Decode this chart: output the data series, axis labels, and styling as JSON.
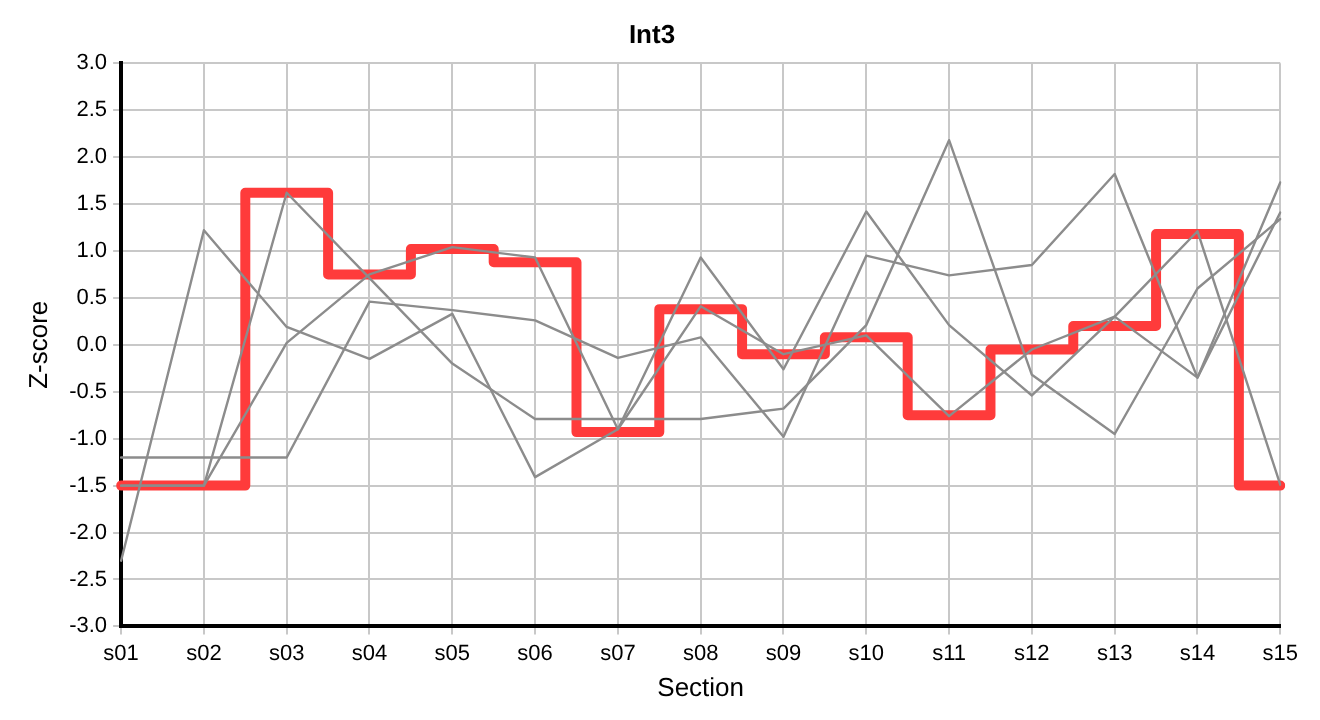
{
  "chart_data": {
    "type": "line",
    "title": "Int3",
    "xlabel": "Section",
    "ylabel": "Z-score",
    "categories": [
      "s01",
      "s02",
      "s03",
      "s04",
      "s05",
      "s06",
      "s07",
      "s08",
      "s09",
      "s10",
      "s11",
      "s12",
      "s13",
      "s14",
      "s15"
    ],
    "series": [
      {
        "color": "#8c8c8c",
        "values": [
          -2.3,
          1.22,
          0.19,
          -0.15,
          0.33,
          -1.41,
          -0.9,
          0.93,
          -0.26,
          1.42,
          0.21,
          -0.54,
          0.3,
          -0.35,
          1.73
        ]
      },
      {
        "color": "#8c8c8c",
        "values": [
          -1.2,
          -1.2,
          -1.2,
          0.46,
          0.37,
          0.26,
          -0.14,
          0.08,
          -0.98,
          0.95,
          0.74,
          0.85,
          1.82,
          -0.35,
          1.41
        ]
      },
      {
        "color": "#8c8c8c",
        "values": [
          -1.5,
          -1.5,
          1.62,
          0.71,
          -0.2,
          -0.79,
          -0.79,
          -0.79,
          -0.68,
          0.21,
          2.18,
          -0.32,
          -0.95,
          0.6,
          1.34
        ]
      },
      {
        "color": "#8c8c8c",
        "values": [
          -1.5,
          -1.5,
          0.02,
          0.75,
          1.04,
          0.93,
          -0.9,
          0.41,
          -0.1,
          0.1,
          -0.76,
          -0.05,
          0.3,
          1.21,
          -1.49
        ]
      },
      {
        "type": "step",
        "color": "#ff3b3b",
        "values": [
          -1.5,
          -1.5,
          1.62,
          0.75,
          1.02,
          0.88,
          -0.93,
          0.38,
          -0.1,
          0.08,
          -0.75,
          -0.05,
          0.2,
          1.18,
          -1.5
        ]
      }
    ],
    "ylim": [
      -3,
      3
    ],
    "yticks": [
      {
        "value": -3,
        "label": "-3.0"
      },
      {
        "value": -2.5,
        "label": "-2.5"
      },
      {
        "value": -2,
        "label": "-2.0"
      },
      {
        "value": -1.5,
        "label": "-1.5"
      },
      {
        "value": -1,
        "label": "-1.0"
      },
      {
        "value": -0.5,
        "label": "-0.5"
      },
      {
        "value": 0,
        "label": "0.0"
      },
      {
        "value": 0.5,
        "label": "0.5"
      },
      {
        "value": 1,
        "label": "1.0"
      },
      {
        "value": 1.5,
        "label": "1.5"
      },
      {
        "value": 2,
        "label": "2.0"
      },
      {
        "value": 2.5,
        "label": "2.5"
      },
      {
        "value": 3,
        "label": "3.0"
      }
    ],
    "grid": true,
    "legend": false,
    "marker": "none"
  }
}
